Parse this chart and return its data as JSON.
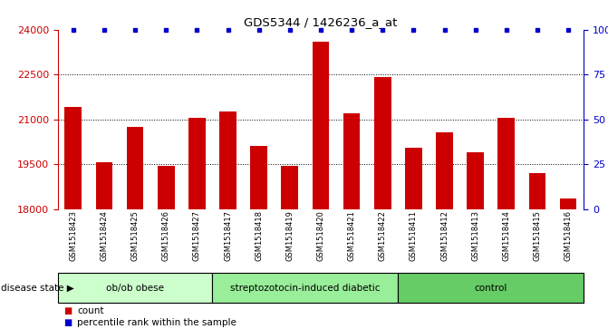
{
  "title": "GDS5344 / 1426236_a_at",
  "samples": [
    "GSM1518423",
    "GSM1518424",
    "GSM1518425",
    "GSM1518426",
    "GSM1518427",
    "GSM1518417",
    "GSM1518418",
    "GSM1518419",
    "GSM1518420",
    "GSM1518421",
    "GSM1518422",
    "GSM1518411",
    "GSM1518412",
    "GSM1518413",
    "GSM1518414",
    "GSM1518415",
    "GSM1518416"
  ],
  "counts": [
    21400,
    19550,
    20750,
    19450,
    21050,
    21250,
    20100,
    19450,
    23600,
    21200,
    22400,
    20050,
    20550,
    19900,
    21050,
    19200,
    18350
  ],
  "percentile_ranks": [
    100,
    100,
    100,
    100,
    100,
    100,
    100,
    100,
    100,
    100,
    100,
    100,
    100,
    100,
    100,
    100,
    100
  ],
  "groups": [
    {
      "label": "ob/ob obese",
      "start": 0,
      "end": 5
    },
    {
      "label": "streptozotocin-induced diabetic",
      "start": 5,
      "end": 11
    },
    {
      "label": "control",
      "start": 11,
      "end": 17
    }
  ],
  "group_colors": [
    "#ccffcc",
    "#99ee99",
    "#66cc66"
  ],
  "bar_color": "#cc0000",
  "percentile_color": "#0000cc",
  "ylim_left": [
    18000,
    24000
  ],
  "ylim_right": [
    0,
    100
  ],
  "yticks_left": [
    18000,
    19500,
    21000,
    22500,
    24000
  ],
  "yticks_right": [
    0,
    25,
    50,
    75,
    100
  ],
  "ylabel_right_labels": [
    "0",
    "25",
    "50",
    "75",
    "100%"
  ],
  "grid_ticks": [
    19500,
    21000,
    22500
  ],
  "background_color": "#ffffff",
  "plot_bg_color": "#ffffff",
  "xtick_area_color": "#d8d8d8",
  "disease_state_label": "disease state",
  "legend_items": [
    {
      "label": "count",
      "color": "#cc0000"
    },
    {
      "label": "percentile rank within the sample",
      "color": "#0000cc"
    }
  ]
}
